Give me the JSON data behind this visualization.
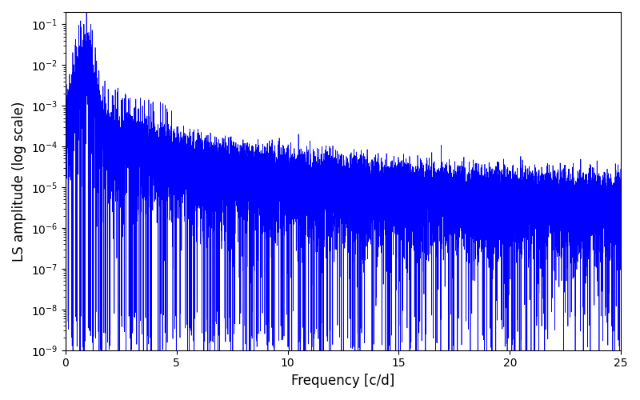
{
  "title": "",
  "xlabel": "Frequency [c/d]",
  "ylabel": "LS amplitude (log scale)",
  "xlim": [
    0,
    25
  ],
  "ylim": [
    1e-09,
    0.2
  ],
  "line_color": "#0000ff",
  "line_width": 0.5,
  "figsize": [
    8.0,
    5.0
  ],
  "dpi": 100,
  "freq_max": 25.0,
  "n_points": 15000,
  "seed": 12345
}
